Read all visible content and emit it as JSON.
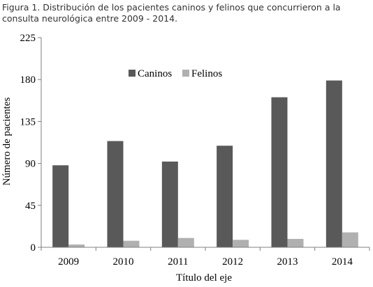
{
  "caption": "Figura 1. Distribución de los pacientes caninos y felinos que concurrieron a la consulta neurológica entre 2009 - 2014.",
  "chart_data": {
    "type": "bar",
    "categories": [
      "2009",
      "2010",
      "2011",
      "2012",
      "2013",
      "2014"
    ],
    "series": [
      {
        "name": "Caninos",
        "color": "#595959",
        "values": [
          88,
          114,
          92,
          109,
          161,
          179
        ]
      },
      {
        "name": "Felinos",
        "color": "#b0b0b0",
        "values": [
          3,
          7,
          10,
          8,
          9,
          16
        ]
      }
    ],
    "xlabel": "Título del eje",
    "ylabel": "Número de pacientes",
    "ylim": [
      0,
      225
    ],
    "yticks": [
      0,
      45,
      90,
      135,
      180,
      225
    ],
    "grid": false,
    "legend_position": "top-center"
  }
}
